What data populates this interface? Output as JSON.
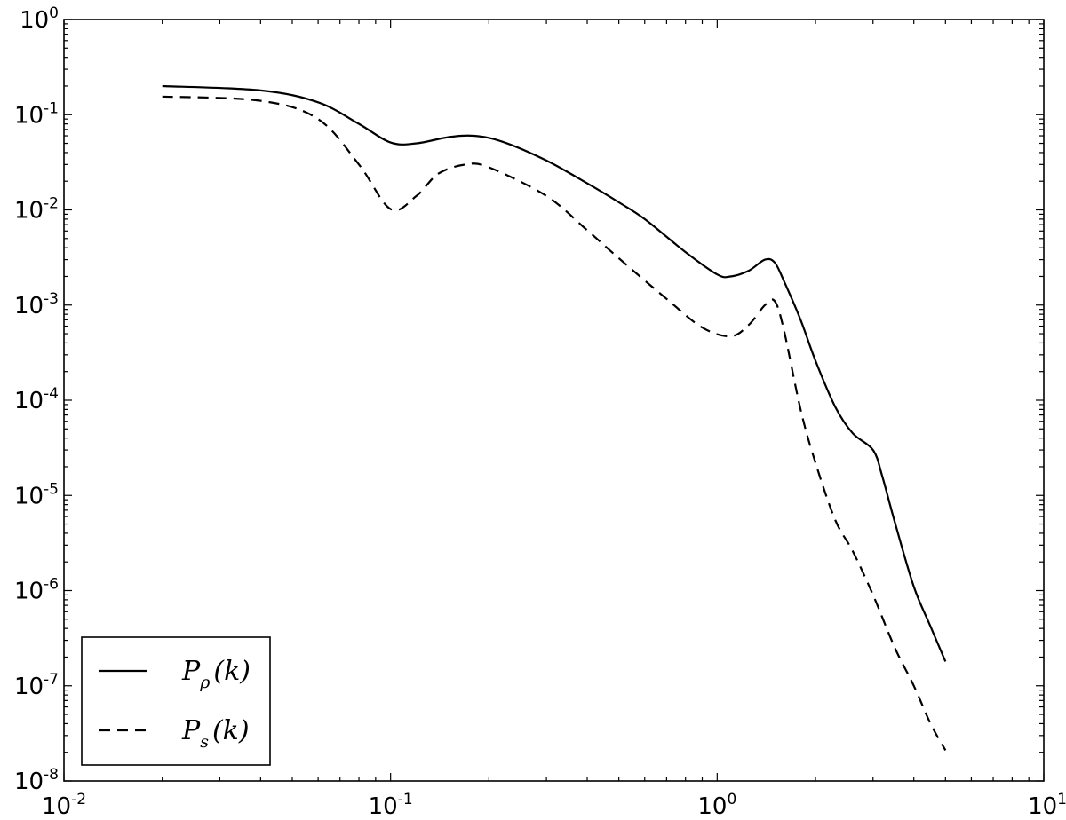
{
  "chart_data": {
    "type": "line",
    "title": "",
    "xlabel": "",
    "ylabel": "",
    "xscale": "log",
    "yscale": "log",
    "xlim": [
      0.01,
      10
    ],
    "ylim": [
      1e-08,
      1
    ],
    "grid": false,
    "legend_position": "lower-left",
    "x_ticks": [
      {
        "base": "10",
        "exp": "-2",
        "value": 0.01
      },
      {
        "base": "10",
        "exp": "-1",
        "value": 0.1
      },
      {
        "base": "10",
        "exp": "0",
        "value": 1
      },
      {
        "base": "10",
        "exp": "1",
        "value": 10
      }
    ],
    "y_ticks": [
      {
        "base": "10",
        "exp": "0",
        "value": 1
      },
      {
        "base": "10",
        "exp": "-1",
        "value": 0.1
      },
      {
        "base": "10",
        "exp": "-2",
        "value": 0.01
      },
      {
        "base": "10",
        "exp": "-3",
        "value": 0.001
      },
      {
        "base": "10",
        "exp": "-4",
        "value": 0.0001
      },
      {
        "base": "10",
        "exp": "-5",
        "value": 1e-05
      },
      {
        "base": "10",
        "exp": "-6",
        "value": 1e-06
      },
      {
        "base": "10",
        "exp": "-7",
        "value": 1e-07
      },
      {
        "base": "10",
        "exp": "-8",
        "value": 1e-08
      }
    ],
    "series": [
      {
        "name": "P_ρ(k)",
        "legend_main": "P",
        "legend_sub": "ρ",
        "legend_arg": "(k)",
        "style": "solid",
        "color": "#000000",
        "points": [
          [
            0.02,
            0.2
          ],
          [
            0.04,
            0.18
          ],
          [
            0.06,
            0.135
          ],
          [
            0.08,
            0.08
          ],
          [
            0.1,
            0.051
          ],
          [
            0.12,
            0.05
          ],
          [
            0.15,
            0.058
          ],
          [
            0.18,
            0.06
          ],
          [
            0.22,
            0.052
          ],
          [
            0.3,
            0.033
          ],
          [
            0.4,
            0.019
          ],
          [
            0.5,
            0.012
          ],
          [
            0.6,
            0.008
          ],
          [
            0.8,
            0.0036
          ],
          [
            1.0,
            0.0021
          ],
          [
            1.1,
            0.002
          ],
          [
            1.25,
            0.0023
          ],
          [
            1.4,
            0.003
          ],
          [
            1.5,
            0.0028
          ],
          [
            1.6,
            0.0018
          ],
          [
            1.8,
            0.0007
          ],
          [
            2.0,
            0.00026
          ],
          [
            2.3,
            8.5e-05
          ],
          [
            2.6,
            4.5e-05
          ],
          [
            3.0,
            3e-05
          ],
          [
            3.2,
            1.6e-05
          ],
          [
            3.5,
            5.2e-06
          ],
          [
            4.0,
            1.1e-06
          ],
          [
            4.5,
            4.2e-07
          ],
          [
            5.0,
            1.8e-07
          ]
        ]
      },
      {
        "name": "P_s(k)",
        "legend_main": "P",
        "legend_sub": "s",
        "legend_arg": "(k)",
        "style": "dashed",
        "color": "#000000",
        "points": [
          [
            0.02,
            0.155
          ],
          [
            0.04,
            0.14
          ],
          [
            0.06,
            0.09
          ],
          [
            0.08,
            0.03
          ],
          [
            0.1,
            0.0102
          ],
          [
            0.12,
            0.014
          ],
          [
            0.14,
            0.024
          ],
          [
            0.17,
            0.03
          ],
          [
            0.2,
            0.028
          ],
          [
            0.3,
            0.014
          ],
          [
            0.4,
            0.0061
          ],
          [
            0.5,
            0.0031
          ],
          [
            0.7,
            0.00116
          ],
          [
            0.9,
            0.00058
          ],
          [
            1.1,
            0.00047
          ],
          [
            1.25,
            0.00062
          ],
          [
            1.4,
            0.001
          ],
          [
            1.5,
            0.0011
          ],
          [
            1.6,
            0.00055
          ],
          [
            1.8,
            8e-05
          ],
          [
            2.0,
            2.2e-05
          ],
          [
            2.3,
            5.5e-06
          ],
          [
            2.6,
            2.6e-06
          ],
          [
            3.0,
            9e-07
          ],
          [
            3.5,
            2.5e-07
          ],
          [
            4.0,
            1e-07
          ],
          [
            4.5,
            4e-08
          ],
          [
            5.0,
            2.1e-08
          ]
        ]
      }
    ]
  }
}
